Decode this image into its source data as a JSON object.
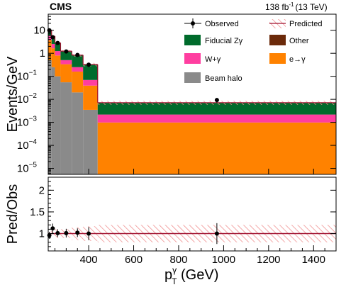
{
  "header": {
    "experiment": "CMS",
    "lumi_value": "138 fb",
    "lumi_exp": "-1",
    "lumi_energy": "(13 TeV)"
  },
  "colors": {
    "fiducial": "#006b2c",
    "wgamma": "#ff3ea0",
    "egamma": "#ff8200",
    "halo": "#8a8a8a",
    "other": "#6b2a0a",
    "predicted": "#a0102f",
    "hatch": "#f09090"
  },
  "chart_data": [
    {
      "type": "bar",
      "stacked": true,
      "ylabel": "Events/GeV",
      "yscale": "log",
      "ylim": [
        5.5e-06,
        50
      ],
      "xlim": [
        220,
        1500
      ],
      "y_ticks": [
        {
          "value": 10,
          "label": "10"
        },
        {
          "value": 1,
          "label": "1"
        },
        {
          "value": 0.1,
          "label": "10",
          "exp": "−1"
        },
        {
          "value": 0.01,
          "label": "10",
          "exp": "−2"
        },
        {
          "value": 0.001,
          "label": "10",
          "exp": "−3"
        },
        {
          "value": 0.0001,
          "label": "10",
          "exp": "−4"
        },
        {
          "value": 1e-05,
          "label": "10",
          "exp": "−5"
        }
      ],
      "bin_edges": [
        220,
        235,
        250,
        275,
        325,
        375,
        440,
        1500
      ],
      "series": [
        {
          "name": "Beam halo",
          "key": "halo",
          "values": [
            0.5,
            0.25,
            0.1,
            0.055,
            0.02,
            0.0035,
            5.5e-06
          ]
        },
        {
          "name": "e→γ",
          "key": "egamma",
          "values": [
            3.2,
            1.4,
            0.7,
            0.28,
            0.14,
            0.036,
            0.00098
          ]
        },
        {
          "name": "W+γ",
          "key": "wgamma",
          "values": [
            2.0,
            0.9,
            0.45,
            0.17,
            0.09,
            0.03,
            0.0012
          ]
        },
        {
          "name": "Fiducial Zγ",
          "key": "fiducial",
          "values": [
            3.9,
            2.8,
            1.5,
            0.71,
            0.57,
            0.25,
            0.0048
          ]
        },
        {
          "name": "Other",
          "key": "other",
          "values": [
            0.4,
            0.15,
            0.07,
            0.03,
            0.015,
            0.006,
            0.0002
          ]
        }
      ],
      "observed": {
        "name": "Observed",
        "x": [
          225,
          240,
          262,
          300,
          350,
          400,
          970
        ],
        "y": [
          10,
          5.0,
          2.8,
          1.2,
          0.85,
          0.32,
          0.0093
        ],
        "err_up": [
          1.0,
          0.6,
          0.3,
          0.15,
          0.13,
          0.07,
          0.0022
        ],
        "err_down": [
          1.0,
          0.6,
          0.3,
          0.15,
          0.13,
          0.07,
          0.0022
        ]
      },
      "predicted_label": "Predicted"
    },
    {
      "type": "scatter",
      "ylabel": "Pred/Obs",
      "xlabel": "p",
      "xlabel_sup": "γ",
      "xlabel_sub": "T",
      "xlabel_rest": " (GeV)",
      "xlim": [
        220,
        1500
      ],
      "ylim": [
        0.6,
        2.3
      ],
      "y_ticks": [
        {
          "value": 1,
          "label": "1"
        },
        {
          "value": 1.5,
          "label": "1.5"
        },
        {
          "value": 2,
          "label": "2"
        }
      ],
      "x_ticks": [
        {
          "value": 400,
          "label": "400"
        },
        {
          "value": 600,
          "label": "600"
        },
        {
          "value": 800,
          "label": "800"
        },
        {
          "value": 1000,
          "label": "1000"
        },
        {
          "value": 1200,
          "label": "1200"
        },
        {
          "value": 1400,
          "label": "1400"
        }
      ],
      "ratio": {
        "x": [
          225,
          240,
          262,
          300,
          350,
          400,
          970
        ],
        "y": [
          0.96,
          1.12,
          1.01,
          1.01,
          1.02,
          1.0,
          1.0
        ],
        "err": [
          0.08,
          0.11,
          0.09,
          0.1,
          0.1,
          0.15,
          0.24
        ]
      },
      "band": {
        "edges": [
          220,
          235,
          250,
          275,
          325,
          375,
          440,
          1500
        ],
        "half_width": [
          0.06,
          0.07,
          0.1,
          0.1,
          0.15,
          0.17,
          0.2
        ]
      },
      "reference_line": 1
    }
  ]
}
